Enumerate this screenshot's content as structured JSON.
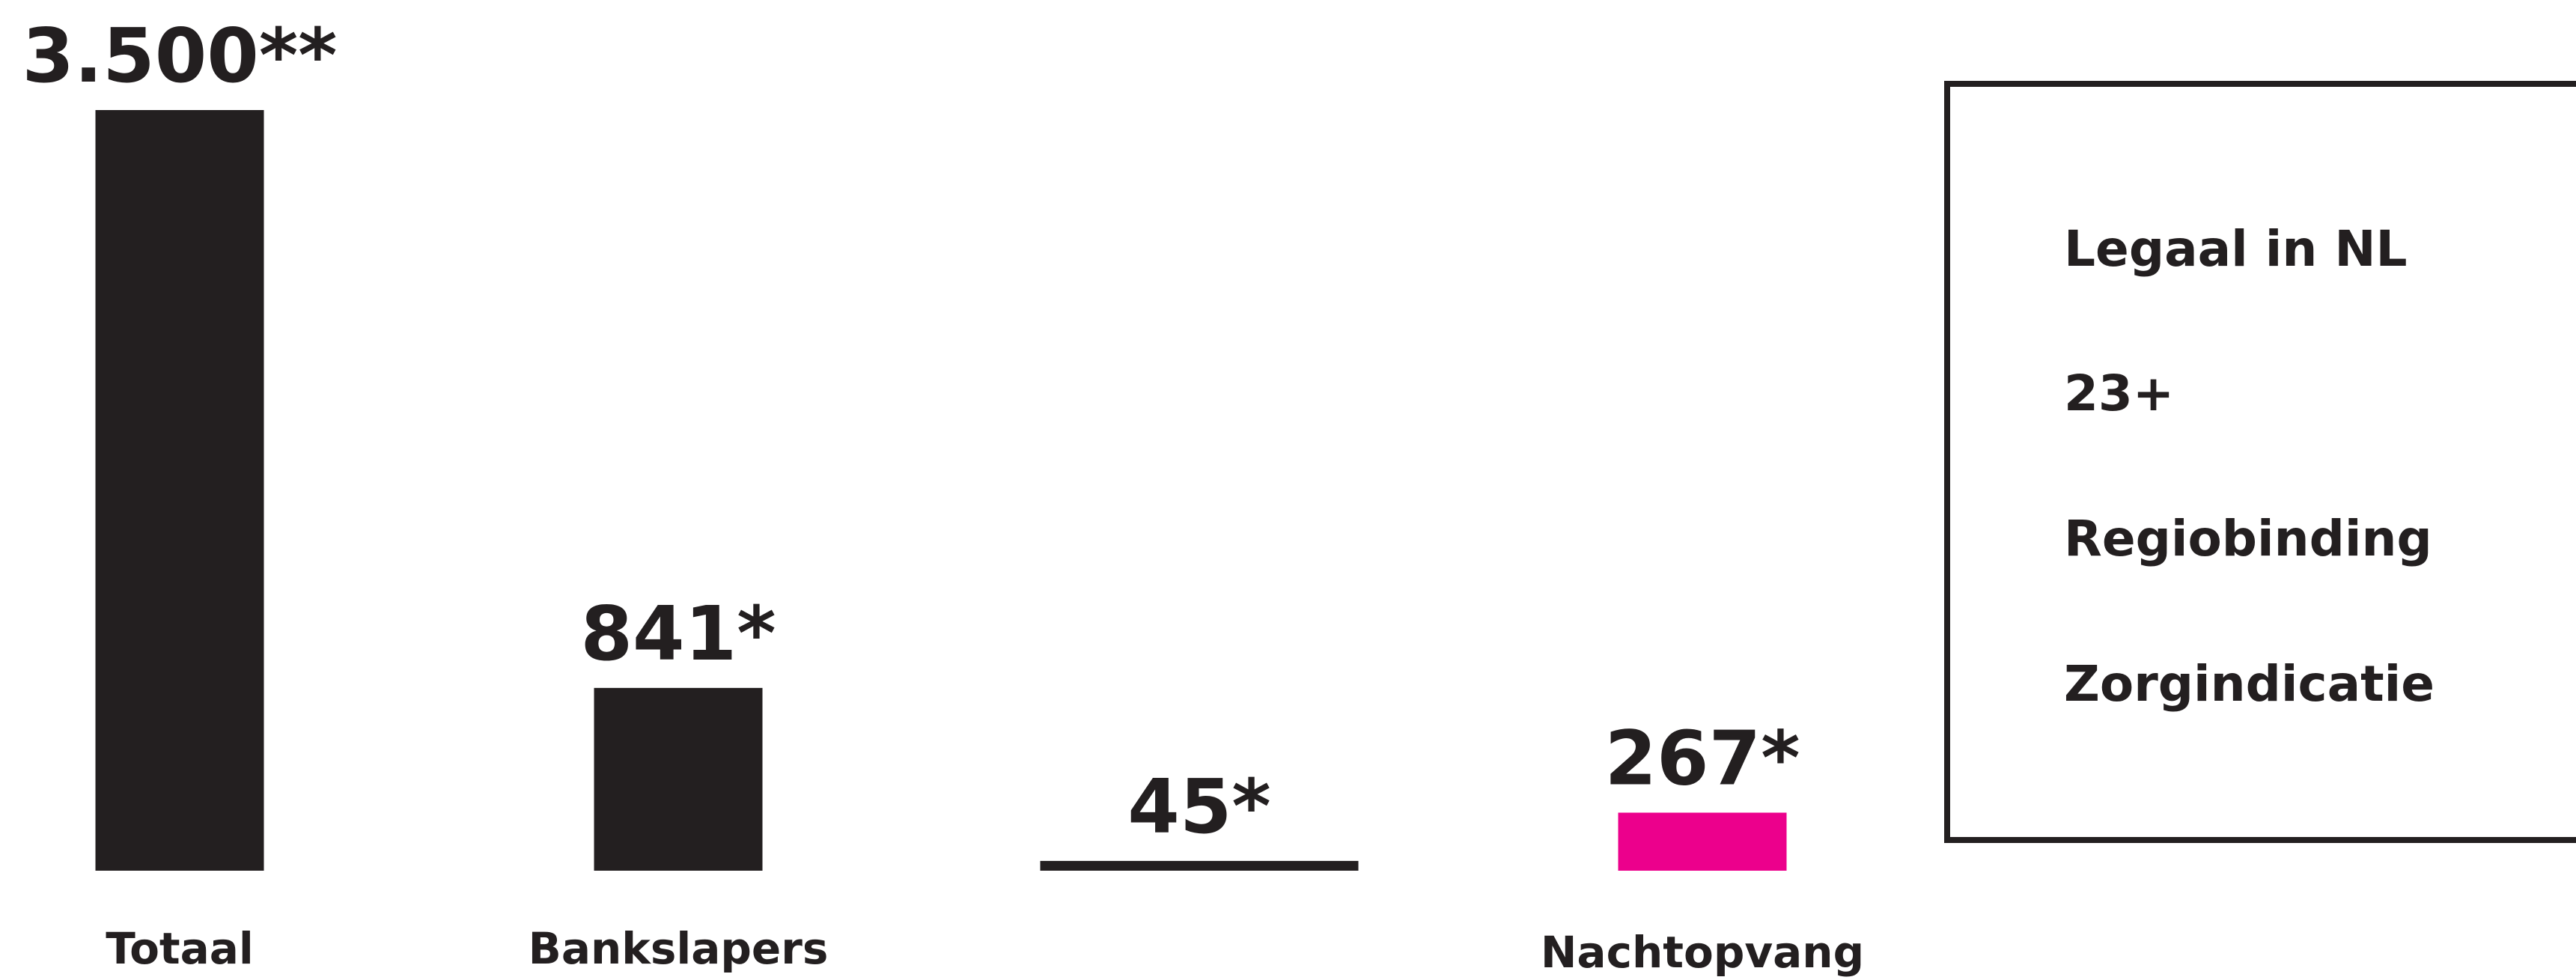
{
  "chart_data": {
    "type": "bar",
    "categories": [
      "Totaal",
      "Bankslapers",
      "",
      "Nachtopvang"
    ],
    "values": [
      3500,
      841,
      45,
      267
    ],
    "value_labels": [
      "3.500**",
      "841*",
      "45*",
      "267*"
    ],
    "colors": [
      "#231f20",
      "#231f20",
      "#231f20",
      "#ec008c"
    ],
    "ylim": [
      0,
      3500
    ],
    "grid": false,
    "legend_box": {
      "position": "right",
      "items": [
        "Legaal in NL",
        "23+",
        "Regiobinding",
        "Zorgindicatie"
      ]
    }
  }
}
